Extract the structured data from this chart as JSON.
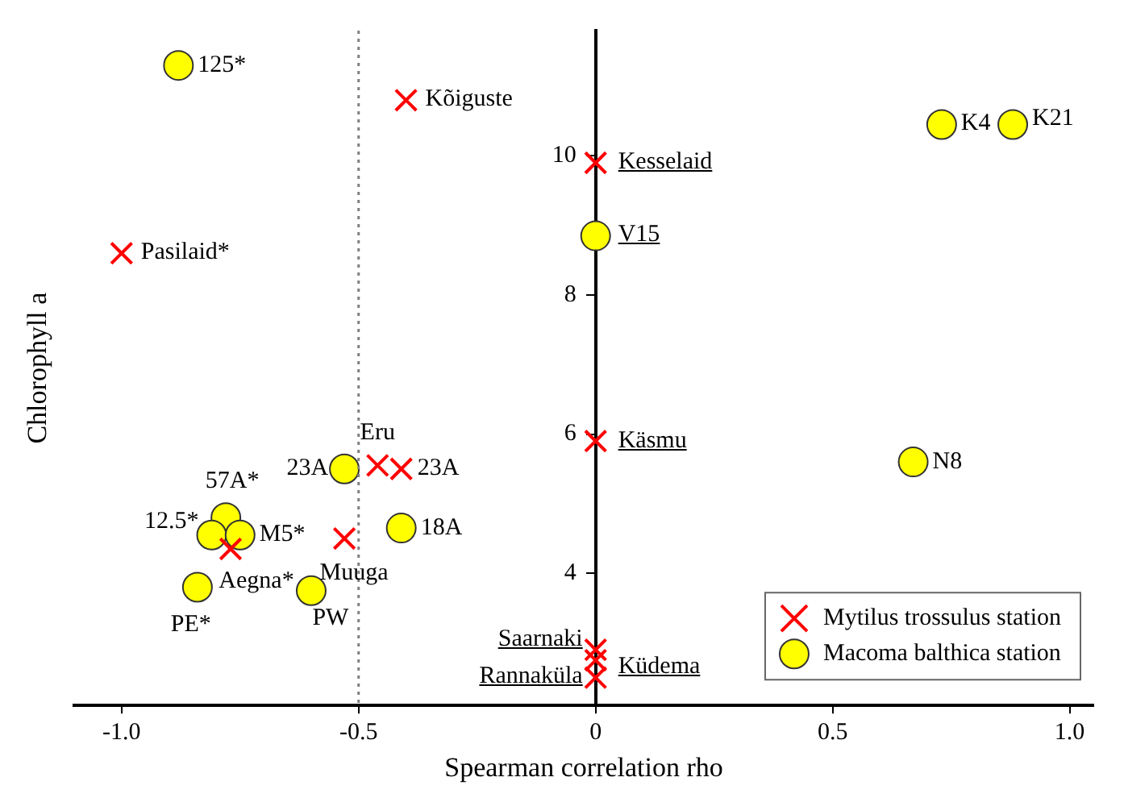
{
  "chart_data": {
    "type": "scatter",
    "xlabel": "Spearman correlation rho",
    "ylabel": "Chlorophyll a",
    "xlim": [
      -1.1,
      1.05
    ],
    "ylim": [
      2.1,
      11.8
    ],
    "xticks": [
      {
        "value": -1.0,
        "label": "-1.0"
      },
      -0.5,
      0,
      0.5,
      {
        "value": 1.0,
        "label": "1.0"
      }
    ],
    "yticks": [
      4,
      6,
      8,
      10
    ],
    "grid": false,
    "legend": "bottom right",
    "ref_lines": [
      {
        "axis": "x",
        "value": -0.5,
        "color": "#808080",
        "line_style": "dotted"
      }
    ],
    "series": [
      {
        "name": "Mytilus trossulus station",
        "color": "#ff0000",
        "marker": "cross",
        "x": [
          -0.4,
          -1.0,
          0,
          0,
          0,
          0,
          0,
          -0.46,
          -0.41,
          -0.53,
          -0.77
        ],
        "values": [
          10.8,
          8.6,
          9.9,
          5.9,
          2.9,
          2.75,
          2.5,
          5.55,
          5.5,
          4.5,
          4.35
        ]
      },
      {
        "name": "Macoma balthica station",
        "color": "#ffff00",
        "marker": "circle",
        "x": [
          -0.88,
          0.73,
          0.88,
          0,
          0.67,
          -0.53,
          -0.78,
          -0.81,
          -0.75,
          -0.41,
          -0.84,
          -0.6
        ],
        "values": [
          11.3,
          10.45,
          10.45,
          8.85,
          5.6,
          5.5,
          4.8,
          4.55,
          4.55,
          4.65,
          3.8,
          3.75
        ]
      }
    ],
    "annotations": [
      {
        "text": "125*",
        "x": -0.88,
        "y": 11.3
      },
      {
        "text": "Kõiguste",
        "x": -0.4,
        "y": 10.8
      },
      {
        "text": "Pasilaid*",
        "x": -1.0,
        "y": 8.6
      },
      {
        "text": "Kesselaid",
        "x": 0,
        "y": 9.9
      },
      {
        "text": "V15",
        "x": 0,
        "y": 8.85
      },
      {
        "text": "K4",
        "x": 0.73,
        "y": 10.45
      },
      {
        "text": "K21",
        "x": 0.88,
        "y": 10.45
      },
      {
        "text": "Käsmu",
        "x": 0,
        "y": 5.9
      },
      {
        "text": "N8",
        "x": 0.67,
        "y": 5.6
      },
      {
        "text": "Eru",
        "x": -0.46,
        "y": 5.55
      },
      {
        "text": "23A",
        "x": -0.53,
        "y": 5.5
      },
      {
        "text": "23A",
        "x": -0.41,
        "y": 5.5
      },
      {
        "text": "57A*",
        "x": -0.78,
        "y": 4.8
      },
      {
        "text": "12.5*",
        "x": -0.81,
        "y": 4.55
      },
      {
        "text": "M5*",
        "x": -0.75,
        "y": 4.55
      },
      {
        "text": "18A",
        "x": -0.41,
        "y": 4.65
      },
      {
        "text": "Muuga",
        "x": -0.53,
        "y": 4.5
      },
      {
        "text": "Aegna*",
        "x": -0.77,
        "y": 4.35
      },
      {
        "text": "PE*",
        "x": -0.84,
        "y": 3.8
      },
      {
        "text": "PW",
        "x": -0.6,
        "y": 3.75
      },
      {
        "text": "Saarnaki",
        "x": 0,
        "y": 2.9
      },
      {
        "text": "Küdema",
        "x": 0,
        "y": 2.75
      },
      {
        "text": "Rannaküla",
        "x": 0,
        "y": 2.5
      }
    ]
  }
}
